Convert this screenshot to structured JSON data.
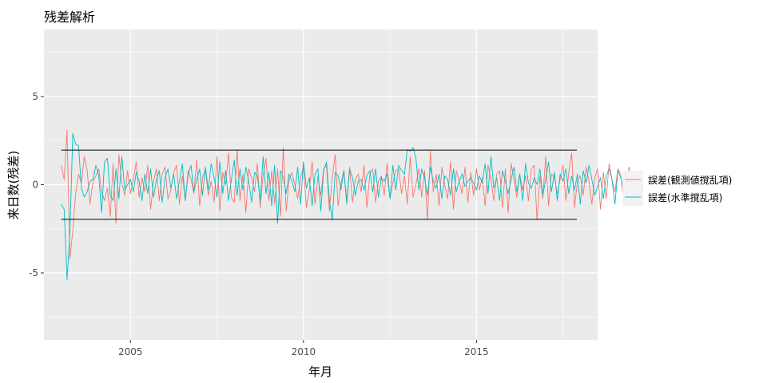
{
  "chart_data": {
    "type": "line",
    "title": "残差解析",
    "xlabel": "年月",
    "ylabel": "来日数(残差)",
    "xlim": [
      2002.5,
      2018.5
    ],
    "ylim": [
      -8.8,
      8.8
    ],
    "x_ticks": [
      2005,
      2010,
      2015
    ],
    "x_tick_labels": [
      "2005",
      "2010",
      "2015"
    ],
    "y_ticks": [
      -5,
      0,
      5
    ],
    "y_tick_labels": [
      "-5",
      "0",
      "5"
    ],
    "grid": true,
    "legend_position": "right",
    "x_start": 2003.0,
    "x_step": 0.0833333,
    "series": [
      {
        "name": "誤差(観測値撹乱項)",
        "color": "#F8766D",
        "values": [
          1.1,
          0.3,
          3.1,
          -4.2,
          -2.6,
          -0.5,
          0.6,
          0.1,
          1.6,
          0.8,
          -1.1,
          0.2,
          0.5,
          0.9,
          -0.4,
          -0.9,
          -0.2,
          -1.8,
          1.2,
          -2.2,
          1.7,
          0.1,
          -0.6,
          0.8,
          -0.5,
          0.3,
          1.3,
          -0.7,
          0.4,
          -0.4,
          1.1,
          -1.4,
          0.2,
          0.9,
          -0.9,
          0.6,
          1.0,
          -0.8,
          -0.3,
          0.7,
          1.1,
          -1.1,
          0.5,
          -0.9,
          0.8,
          0.3,
          -0.5,
          1.4,
          -1.2,
          0.4,
          0.9,
          -0.6,
          0.2,
          -1.0,
          1.6,
          -1.5,
          0.7,
          0.0,
          1.8,
          -0.7,
          -1.0,
          2.0,
          -0.9,
          0.6,
          -1.6,
          0.9,
          0.4,
          -0.4,
          1.2,
          -1.3,
          0.5,
          1.5,
          -0.9,
          0.8,
          -1.1,
          0.9,
          -1.8,
          2.1,
          -1.5,
          0.3,
          0.7,
          0.0,
          -0.8,
          0.4,
          1.0,
          -1.3,
          -0.3,
          1.3,
          -1.1,
          0.5,
          -0.6,
          0.9,
          1.1,
          -1.5,
          0.4,
          1.7,
          -1.2,
          0.1,
          0.8,
          -0.9,
          1.0,
          -1.0,
          0.3,
          0.6,
          -0.4,
          1.1,
          -1.3,
          0.6,
          0.9,
          -1.0,
          0.2,
          0.5,
          -0.6,
          1.2,
          -0.8,
          0.1,
          0.8,
          0.9,
          -0.5,
          0.5,
          -1.1,
          1.6,
          -0.7,
          0.0,
          0.9,
          -0.7,
          0.8,
          -2.0,
          1.9,
          -0.4,
          0.6,
          -1.2,
          1.0,
          0.0,
          -0.8,
          1.3,
          -1.4,
          0.8,
          0.2,
          -0.5,
          1.0,
          -1.0,
          0.7,
          -0.6,
          0.9,
          -0.3,
          0.4,
          -1.2,
          1.1,
          0.3,
          -0.9,
          0.6,
          0.8,
          -1.3,
          0.9,
          -1.6,
          1.2,
          0.3,
          -0.7,
          0.6,
          -0.3,
          0.5,
          -0.9,
          0.9,
          1.1,
          -2.0,
          0.5,
          -0.8,
          1.6,
          -1.2,
          0.6,
          0.4,
          -0.5,
          0.3,
          1.1,
          -0.9,
          0.7,
          1.8,
          -1.3,
          0.2,
          0.5,
          -0.6,
          1.0,
          0.2,
          -1.1,
          0.4,
          0.9,
          -1.4,
          0.7,
          -0.8,
          1.2,
          0.3,
          -0.4,
          0.9,
          0.6,
          -0.9,
          0.5,
          1.0,
          -0.1
        ]
      },
      {
        "name": "誤差(水準撹乱項)",
        "color": "#00BFC4",
        "values": [
          -1.1,
          -1.4,
          -5.4,
          -2.7,
          2.9,
          2.3,
          2.2,
          -0.2,
          -0.7,
          -0.4,
          0.2,
          0.3,
          1.1,
          0.5,
          -1.6,
          1.3,
          1.5,
          -0.6,
          -0.9,
          0.9,
          -0.8,
          1.6,
          -0.3,
          0.0,
          0.3,
          -0.4,
          0.7,
          0.2,
          -0.9,
          0.6,
          -0.5,
          0.9,
          -0.7,
          0.3,
          0.8,
          -1.0,
          0.4,
          0.9,
          -0.2,
          0.6,
          -0.8,
          0.2,
          1.2,
          -0.9,
          0.6,
          1.1,
          -0.4,
          0.3,
          0.9,
          -0.6,
          1.0,
          -0.3,
          1.2,
          0.4,
          -0.7,
          1.3,
          -0.5,
          0.8,
          -0.9,
          0.3,
          1.4,
          -0.6,
          0.9,
          -0.3,
          1.0,
          0.2,
          -1.0,
          0.7,
          0.5,
          -0.9,
          1.6,
          -0.5,
          0.7,
          -1.2,
          1.1,
          -2.2,
          0.8,
          0.4,
          -0.5,
          0.6,
          0.2,
          -0.4,
          1.0,
          -1.1,
          1.3,
          -0.2,
          0.4,
          -1.2,
          0.6,
          0.9,
          -1.5,
          0.8,
          1.3,
          -0.9,
          -2.0,
          0.7,
          0.5,
          -0.3,
          0.8,
          -1.1,
          0.9,
          0.4,
          -0.6,
          0.2,
          0.3,
          -0.3,
          0.5,
          0.8,
          -0.4,
          0.9,
          -0.7,
          0.4,
          0.2,
          0.6,
          -0.8,
          1.1,
          -0.3,
          1.1,
          0.8,
          0.6,
          2.0,
          1.9,
          2.1,
          1.5,
          -0.3,
          0.9,
          0.4,
          -0.6,
          1.0,
          0.2,
          -0.2,
          0.6,
          -0.8,
          0.5,
          0.3,
          -0.6,
          0.9,
          -0.4,
          0.2,
          0.6,
          -0.1,
          0.2,
          0.4,
          0.1,
          -0.3,
          0.5,
          0.1,
          1.2,
          -0.5,
          1.6,
          -0.2,
          0.4,
          -0.9,
          0.8,
          0.2,
          -0.5,
          0.3,
          1.0,
          -0.4,
          0.6,
          -0.9,
          1.2,
          0.1,
          -0.2,
          0.4,
          0.0,
          0.9,
          -0.6,
          0.3,
          1.3,
          -0.4,
          0.7,
          -0.9,
          0.6,
          0.2,
          0.9,
          -0.5,
          0.5,
          -0.3,
          0.6,
          -1.1,
          0.8,
          0.1,
          1.1,
          0.3,
          -0.6,
          -0.1,
          0.4,
          -0.8,
          0.5,
          0.9,
          0.3,
          -1.1,
          0.8,
          0.4,
          -0.3,
          0.7,
          0.2,
          -0.5,
          0.6,
          0.1
        ]
      }
    ],
    "reference_lines": [
      {
        "y": 1.96,
        "x_from": 2003.0,
        "x_to": 2017.9,
        "color": "#000000"
      },
      {
        "y": -1.96,
        "x_from": 2003.0,
        "x_to": 2017.9,
        "color": "#000000"
      }
    ],
    "panel_background": "#EBEBEB",
    "grid_color": "#FFFFFF"
  }
}
